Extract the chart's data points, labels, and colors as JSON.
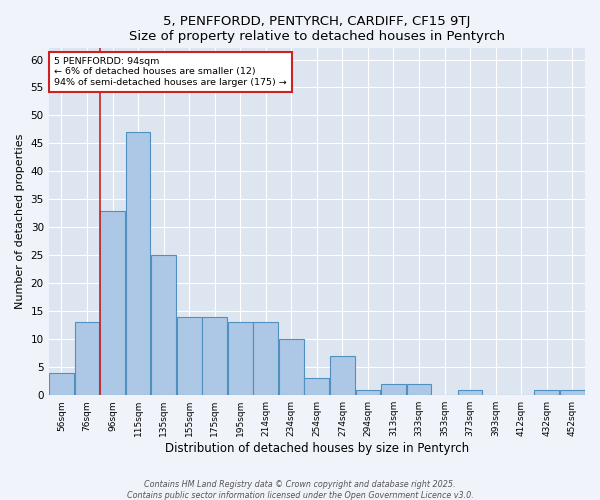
{
  "title1": "5, PENFFORDD, PENTYRCH, CARDIFF, CF15 9TJ",
  "title2": "Size of property relative to detached houses in Pentyrch",
  "xlabel": "Distribution of detached houses by size in Pentyrch",
  "ylabel": "Number of detached properties",
  "bar_labels": [
    "56sqm",
    "76sqm",
    "96sqm",
    "115sqm",
    "135sqm",
    "155sqm",
    "175sqm",
    "195sqm",
    "214sqm",
    "234sqm",
    "254sqm",
    "274sqm",
    "294sqm",
    "313sqm",
    "333sqm",
    "353sqm",
    "373sqm",
    "393sqm",
    "412sqm",
    "432sqm",
    "452sqm"
  ],
  "bar_values": [
    4,
    13,
    33,
    47,
    25,
    14,
    14,
    13,
    13,
    10,
    3,
    7,
    1,
    2,
    2,
    0,
    1,
    0,
    0,
    1,
    1
  ],
  "bar_color": "#adc8e6",
  "bar_edge_color": "#4f90c0",
  "vline_color": "#cc2222",
  "vline_x": 1.5,
  "annotation_title": "5 PENFFORDD: 94sqm",
  "annotation_line2": "← 6% of detached houses are smaller (12)",
  "annotation_line3": "94% of semi-detached houses are larger (175) →",
  "annotation_box_color": "#cc2222",
  "footnote1": "Contains HM Land Registry data © Crown copyright and database right 2025.",
  "footnote2": "Contains public sector information licensed under the Open Government Licence v3.0.",
  "ylim": [
    0,
    62
  ],
  "yticks": [
    0,
    5,
    10,
    15,
    20,
    25,
    30,
    35,
    40,
    45,
    50,
    55,
    60
  ],
  "fig_bg_color": "#f0f4fa",
  "bg_color": "#dde6f0",
  "grid_color": "#ffffff"
}
